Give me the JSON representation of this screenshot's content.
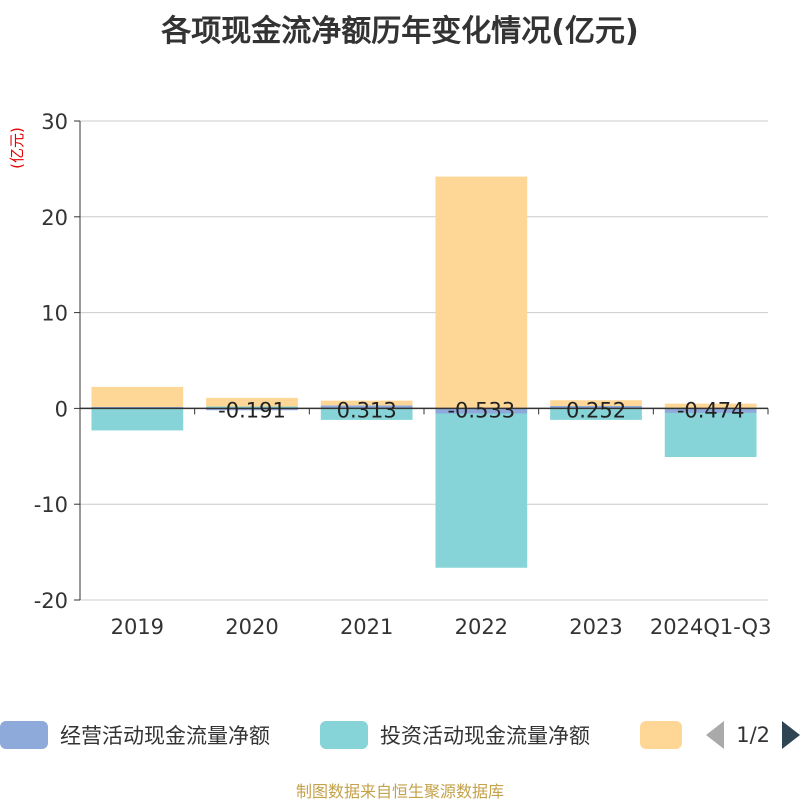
{
  "title": "各项现金流净额历年变化情况(亿元)",
  "footer": "制图数据来自恒生聚源数据库",
  "legend": {
    "items": [
      {
        "name": "经营活动现金流量净额",
        "color": "#8eaadb"
      },
      {
        "name": "投资活动现金流量净额",
        "color": "#86d4d8"
      },
      {
        "name": "",
        "color": "#fed797"
      }
    ],
    "page": "1/2"
  },
  "chart_data": {
    "type": "bar",
    "stacked": true,
    "title": "各项现金流净额历年变化情况(亿元)",
    "ylabel": "(亿元)",
    "ylim": [
      -20,
      30
    ],
    "yticks": [
      30,
      20,
      10,
      0,
      -10,
      -20
    ],
    "categories": [
      "2019",
      "2020",
      "2021",
      "2022",
      "2023",
      "2024Q1-Q3"
    ],
    "series": [
      {
        "name": "经营活动现金流量净额",
        "color": "#8eaadb",
        "values": [
          0.15,
          -0.191,
          0.313,
          -0.533,
          0.252,
          -0.474
        ]
      },
      {
        "name": "投资活动现金流量净额",
        "color": "#86d4d8",
        "values": [
          -2.3,
          0.2,
          -1.2,
          -16.1,
          -1.2,
          -4.6
        ]
      },
      {
        "name": "",
        "color": "#fed797",
        "values": [
          2.1,
          0.9,
          0.5,
          24.2,
          0.6,
          0.5
        ]
      }
    ],
    "point_labels": [
      "",
      "-0.191",
      "0.313",
      "-0.533",
      "0.252",
      "-0.474"
    ]
  }
}
